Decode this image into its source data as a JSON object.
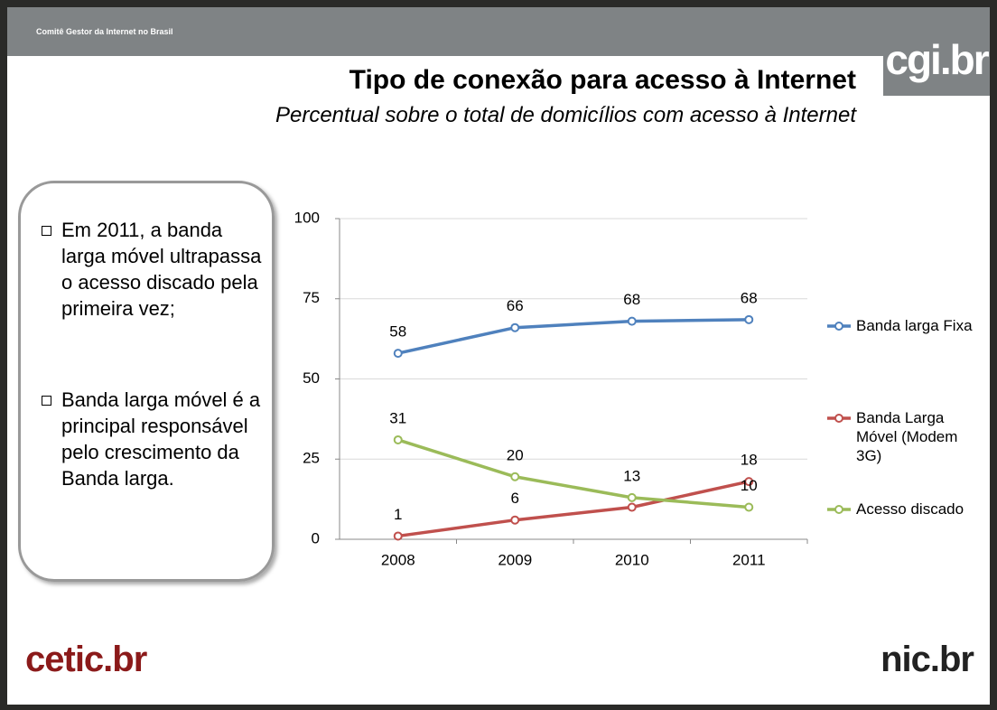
{
  "header": {
    "org": "Comitê Gestor da Internet no Brasil",
    "logo": "cgi.br"
  },
  "title": "Tipo de conexão para acesso à Internet",
  "subtitle": "Percentual sobre o total de domicílios com acesso à Internet",
  "bullets": [
    "Em 2011, a banda larga móvel ultrapassa o acesso discado pela primeira vez;",
    "Banda larga móvel é a principal responsável pelo crescimento da Banda larga."
  ],
  "footer": {
    "left_logo": "cetic.br",
    "right_logo": "nic.br"
  },
  "chart_data": {
    "type": "line",
    "categories": [
      "2008",
      "2009",
      "2010",
      "2011"
    ],
    "ylim": [
      0,
      100
    ],
    "yticks": [
      0,
      25,
      50,
      75,
      100
    ],
    "grid": true,
    "legend": "right",
    "series": [
      {
        "name": "Banda larga Fixa",
        "color": "#4f81bd",
        "values": [
          58,
          66,
          68,
          68.5
        ],
        "value_labels": [
          "58",
          "66",
          "68",
          "68"
        ]
      },
      {
        "name": "Banda Larga Móvel (Modem 3G)",
        "color": "#c0504d",
        "values": [
          1,
          6,
          10,
          18
        ],
        "value_labels": [
          "1",
          "6",
          null,
          "18"
        ]
      },
      {
        "name": "Acesso discado",
        "color": "#9bbb59",
        "values": [
          31,
          19.5,
          13,
          10
        ],
        "value_labels": [
          "31",
          "20",
          "13",
          "10"
        ]
      }
    ]
  }
}
